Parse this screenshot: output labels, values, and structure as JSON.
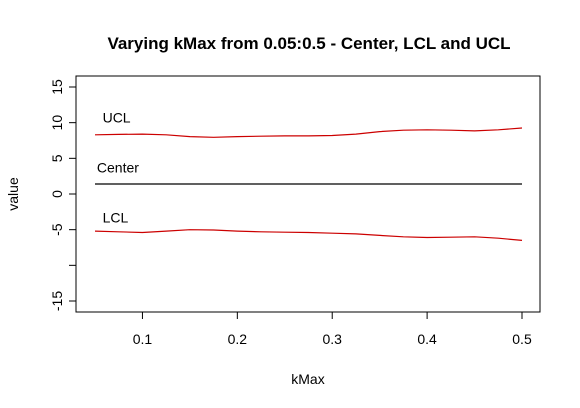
{
  "chart_data": {
    "type": "line",
    "title": "Varying kMax from 0.05:0.5 - Center, LCL and UCL",
    "xlabel": "kMax",
    "ylabel": "value",
    "xlim": [
      0.05,
      0.5
    ],
    "ylim": [
      -15,
      15
    ],
    "x_ticks": [
      0.1,
      0.2,
      0.3,
      0.4,
      0.5
    ],
    "x_tick_labels": [
      "0.1",
      "0.2",
      "0.3",
      "0.4",
      "0.5"
    ],
    "y_ticks": [
      -15,
      -10,
      -5,
      0,
      5,
      10,
      15
    ],
    "y_tick_labels": [
      "-15",
      "",
      "-5",
      "0",
      "5",
      "10",
      "15"
    ],
    "grid": false,
    "legend": "none",
    "series": [
      {
        "name": "UCL",
        "color": "#cc0000",
        "x": [
          0.05,
          0.075,
          0.1,
          0.125,
          0.15,
          0.175,
          0.2,
          0.225,
          0.25,
          0.275,
          0.3,
          0.325,
          0.35,
          0.375,
          0.4,
          0.425,
          0.45,
          0.475,
          0.5
        ],
        "y": [
          8.3,
          8.35,
          8.4,
          8.3,
          8.05,
          7.95,
          8.05,
          8.1,
          8.15,
          8.15,
          8.2,
          8.4,
          8.75,
          8.95,
          9.0,
          8.95,
          8.85,
          9.0,
          9.25
        ]
      },
      {
        "name": "Center",
        "color": "#000000",
        "x": [
          0.05,
          0.5
        ],
        "y": [
          1.4,
          1.4
        ]
      },
      {
        "name": "LCL",
        "color": "#cc0000",
        "x": [
          0.05,
          0.075,
          0.1,
          0.125,
          0.15,
          0.175,
          0.2,
          0.225,
          0.25,
          0.275,
          0.3,
          0.325,
          0.35,
          0.375,
          0.4,
          0.425,
          0.45,
          0.475,
          0.5
        ],
        "y": [
          -5.2,
          -5.3,
          -5.4,
          -5.2,
          -5.0,
          -5.05,
          -5.2,
          -5.3,
          -5.35,
          -5.4,
          -5.5,
          -5.6,
          -5.8,
          -6.0,
          -6.1,
          -6.05,
          -6.0,
          -6.2,
          -6.5
        ]
      }
    ],
    "annotations": [
      {
        "text": "UCL",
        "x": 0.058,
        "y": 10
      },
      {
        "text": "Center",
        "x": 0.052,
        "y": 3
      },
      {
        "text": "LCL",
        "x": 0.058,
        "y": -4
      }
    ]
  }
}
